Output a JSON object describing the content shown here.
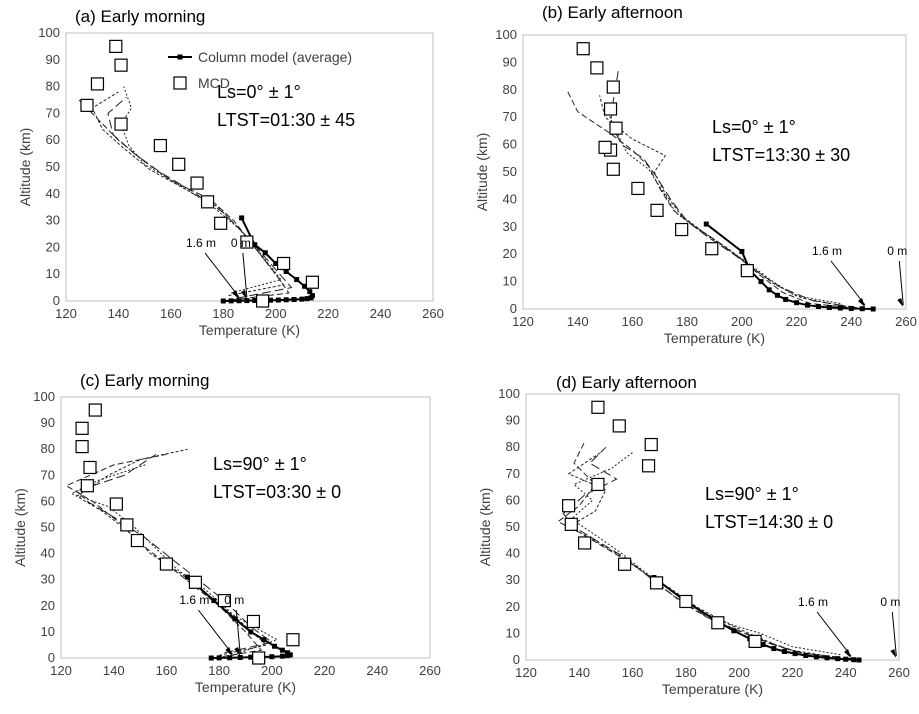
{
  "legend": {
    "model_label": "Column model (average)",
    "mcd_label": "MCD"
  },
  "chart_data": [
    {
      "type": "line",
      "title": "(a) Early morning",
      "xlabel": "Temperature (K)",
      "ylabel": "Altitude (km)",
      "xlim": [
        120,
        260
      ],
      "ylim": [
        0,
        100
      ],
      "xticks": [
        120,
        140,
        160,
        180,
        200,
        220,
        240,
        260
      ],
      "yticks": [
        0,
        10,
        20,
        30,
        40,
        50,
        60,
        70,
        80,
        90,
        100
      ],
      "grid": false,
      "legend_position": "top-right",
      "annotation_lines": [
        "Ls=0° ± 1°",
        "LTST=01:30 ± 45"
      ],
      "surface_labels": {
        "label_16m": "1.6 m",
        "label_0m": "0 m",
        "target_16m": 186,
        "target_0m": 189
      },
      "series": [
        {
          "name": "Column model (average)",
          "x": [
            187,
            192,
            196,
            200,
            204,
            208,
            211,
            213,
            214,
            213.5,
            212,
            210,
            207,
            204,
            201,
            198,
            195,
            192,
            189,
            186,
            183,
            180
          ],
          "y": [
            31,
            21,
            18,
            14,
            11,
            8,
            5.5,
            3.5,
            2,
            1.2,
            0.9,
            0.7,
            0.55,
            0.45,
            0.35,
            0.3,
            0.25,
            0.2,
            0.15,
            0.1,
            0.05,
            0
          ]
        },
        {
          "name": "MCD",
          "x": [
            139,
            141,
            132,
            128,
            141,
            156,
            163,
            170,
            174,
            179,
            189,
            203,
            214,
            195
          ],
          "y": [
            95,
            88,
            81,
            73,
            66,
            58,
            51,
            44,
            37,
            29,
            22,
            14,
            7,
            0
          ]
        }
      ]
    },
    {
      "type": "line",
      "title": "(b) Early afternoon",
      "xlabel": "Temperature (K)",
      "ylabel": "Altitude (km)",
      "xlim": [
        120,
        260
      ],
      "ylim": [
        0,
        100
      ],
      "xticks": [
        120,
        140,
        160,
        180,
        200,
        220,
        240,
        260
      ],
      "yticks": [
        0,
        10,
        20,
        30,
        40,
        50,
        60,
        70,
        80,
        90,
        100
      ],
      "grid": false,
      "legend_position": "none",
      "annotation_lines": [
        "Ls=0° ± 1°",
        "LTST=13:30 ± 30"
      ],
      "surface_labels": {
        "label_16m": "1.6 m",
        "label_0m": "0 m",
        "target_16m": 245,
        "target_0m": 259
      },
      "series": [
        {
          "name": "Column model (average)",
          "x": [
            187,
            200,
            203,
            207,
            210,
            213,
            216,
            220,
            224,
            228,
            232,
            236,
            240,
            244,
            248
          ],
          "y": [
            31,
            21,
            14,
            10,
            7,
            5,
            3.5,
            2.3,
            1.4,
            0.9,
            0.55,
            0.35,
            0.2,
            0.1,
            0
          ]
        },
        {
          "name": "MCD",
          "x": [
            142,
            147,
            153,
            152,
            154,
            152,
            150,
            153,
            162,
            169,
            178,
            189,
            202
          ],
          "y": [
            95,
            88,
            81,
            73,
            66,
            58,
            59,
            51,
            44,
            36,
            29,
            22,
            14
          ]
        }
      ]
    },
    {
      "type": "line",
      "title": "(c) Early morning",
      "xlabel": "Temperature (K)",
      "ylabel": "Altitude (km)",
      "xlim": [
        120,
        260
      ],
      "ylim": [
        0,
        100
      ],
      "xticks": [
        120,
        140,
        160,
        180,
        200,
        220,
        240,
        260
      ],
      "yticks": [
        0,
        10,
        20,
        30,
        40,
        50,
        60,
        70,
        80,
        90,
        100
      ],
      "grid": false,
      "legend_position": "none",
      "annotation_lines": [
        "Ls=90° ± 1°",
        "LTST=03:30 ± 0"
      ],
      "surface_labels": {
        "label_16m": "1.6 m",
        "label_0m": "0 m",
        "target_16m": 185,
        "target_0m": 188
      },
      "series": [
        {
          "name": "Column model (average)",
          "x": [
            168,
            178,
            186,
            192,
            197,
            201,
            204,
            206,
            207,
            206,
            204,
            200,
            196,
            192,
            188,
            184,
            180,
            177
          ],
          "y": [
            31,
            22,
            15,
            10,
            7,
            4.5,
            3,
            2,
            1.2,
            0.9,
            0.7,
            0.5,
            0.4,
            0.3,
            0.2,
            0.1,
            0.05,
            0
          ]
        },
        {
          "name": "MCD",
          "x": [
            133,
            128,
            128,
            131,
            130,
            141,
            145,
            149,
            160,
            171,
            182,
            193,
            208,
            195
          ],
          "y": [
            95,
            88,
            81,
            73,
            66,
            59,
            51,
            45,
            36,
            29,
            22,
            14,
            7,
            0
          ]
        }
      ]
    },
    {
      "type": "line",
      "title": "(d) Early afternoon",
      "xlabel": "Temperature (K)",
      "ylabel": "Altitude (km)",
      "xlim": [
        120,
        260
      ],
      "ylim": [
        0,
        100
      ],
      "xticks": [
        120,
        140,
        160,
        180,
        200,
        220,
        240,
        260
      ],
      "yticks": [
        0,
        10,
        20,
        30,
        40,
        50,
        60,
        70,
        80,
        90,
        100
      ],
      "grid": false,
      "legend_position": "none",
      "annotation_lines": [
        "Ls=90° ± 1°",
        "LTST=14:30 ± 0"
      ],
      "surface_labels": {
        "label_16m": "1.6 m",
        "label_0m": "0 m",
        "target_16m": 242,
        "target_0m": 259
      },
      "series": [
        {
          "name": "Column model (average)",
          "x": [
            168,
            180,
            191,
            198,
            204,
            209,
            213,
            217,
            221,
            225,
            229,
            233,
            237,
            240,
            243,
            245
          ],
          "y": [
            31,
            22,
            15,
            11,
            8,
            5.8,
            4.3,
            3.2,
            2.4,
            1.7,
            1.2,
            0.8,
            0.5,
            0.3,
            0.1,
            0
          ]
        },
        {
          "name": "MCD",
          "x": [
            147,
            155,
            167,
            166,
            147,
            136,
            137,
            142,
            157,
            169,
            180,
            192,
            206
          ],
          "y": [
            95,
            88,
            81,
            73,
            66,
            58,
            51,
            44,
            36,
            29,
            22,
            14,
            7
          ]
        }
      ]
    }
  ]
}
